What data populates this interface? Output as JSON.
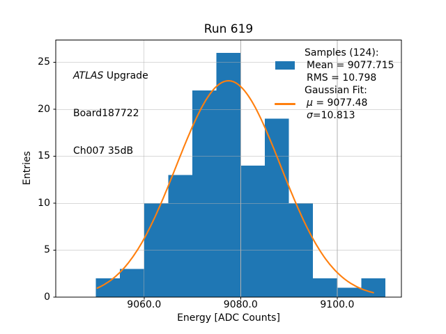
{
  "title": "Run 619",
  "annotation": {
    "experiment": "ATLAS",
    "experiment_suffix": " Upgrade",
    "board": "Board187722",
    "channel": "Ch007 35dB"
  },
  "legend": {
    "samples_header": "Samples (124):",
    "mean": "Mean = 9077.715",
    "rms": "RMS = 10.798",
    "fit_header": "Gaussian Fit:",
    "mu_symbol": "μ",
    "mu_rest": " = 9077.48",
    "sigma_symbol": "σ",
    "sigma_rest": "=10.813"
  },
  "axes": {
    "xlabel": "Energy [ADC Counts]",
    "ylabel": "Entries"
  },
  "colors": {
    "hist": "#1f77b4",
    "fit": "#ff7f0e",
    "grid": "#b0b0b0",
    "spine": "#000000",
    "text": "#000000"
  },
  "chart_data": {
    "type": "bar",
    "subtype": "histogram_with_gaussian_fit_overlay",
    "title": "Run 619",
    "xlabel": "Energy [ADC Counts]",
    "ylabel": "Entries",
    "n_samples": 124,
    "stats": {
      "mean": 9077.715,
      "rms": 10.798
    },
    "fit": {
      "mu": 9077.48,
      "sigma": 10.813,
      "amplitude": 23.05,
      "x_start": 9050.3,
      "x_end": 9107.5,
      "color": "#ff7f0e"
    },
    "histogram": {
      "bin_start": 9050,
      "bin_width": 5,
      "bin_edges": [
        9050,
        9055,
        9060,
        9065,
        9070,
        9075,
        9080,
        9085,
        9090,
        9095,
        9100,
        9105,
        9110
      ],
      "counts": [
        2,
        3,
        10,
        13,
        22,
        26,
        14,
        19,
        10,
        2,
        1,
        2
      ],
      "color": "#1f77b4"
    },
    "xlim": [
      9041.7,
      9113.3
    ],
    "ylim": [
      0,
      27.38
    ],
    "xticks": {
      "values": [
        9060,
        9080,
        9100
      ],
      "labels": [
        "9060.0",
        "9080.0",
        "9100.0"
      ]
    },
    "yticks": {
      "values": [
        0,
        5,
        10,
        15,
        20,
        25
      ],
      "labels": [
        "0",
        "5",
        "10",
        "15",
        "20",
        "25"
      ]
    },
    "grid": true,
    "grid_over_bars": true,
    "legend_position": "upper right",
    "annotation_lines": [
      "ATLAS Upgrade",
      "Board187722",
      "Ch007 35dB"
    ]
  }
}
